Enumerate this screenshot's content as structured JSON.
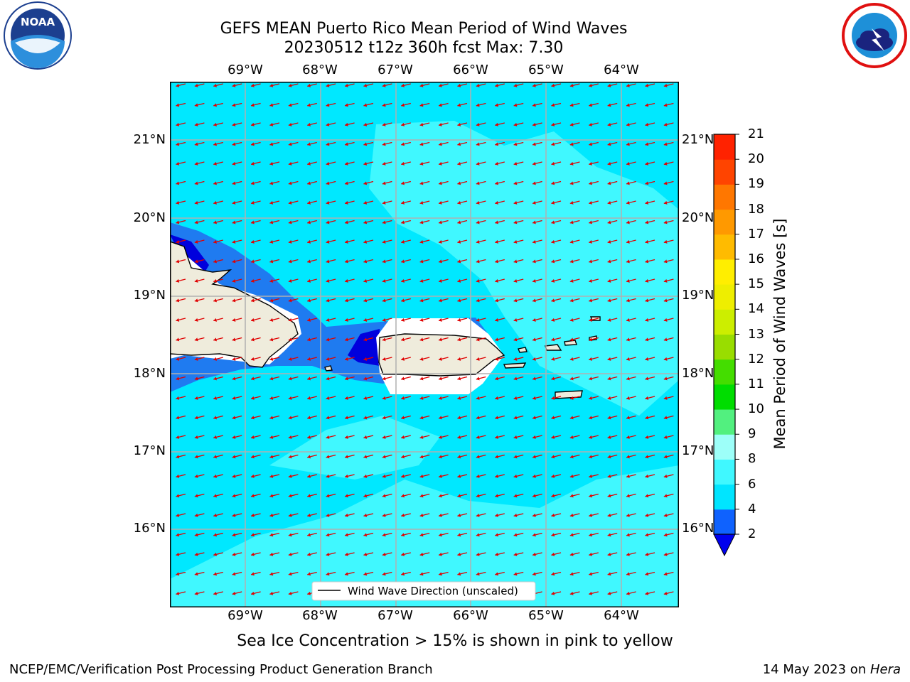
{
  "title_line1": "GEFS MEAN Puerto Rico Mean Period of Wind Waves",
  "title_line2": "20230512 t12z 360h fcst   Max: 7.30",
  "lon_labels": [
    "69°W",
    "68°W",
    "67°W",
    "66°W",
    "65°W",
    "64°W"
  ],
  "lat_labels": [
    "21°N",
    "20°N",
    "19°N",
    "18°N",
    "17°N",
    "16°N"
  ],
  "colorbar": {
    "label": "Mean Period of Wind Waves [s]",
    "ticks": [
      "2",
      "4",
      "6",
      "8",
      "9",
      "10",
      "11",
      "12",
      "13",
      "14",
      "15",
      "16",
      "17",
      "18",
      "19",
      "20",
      "21"
    ],
    "colors": [
      "#0f62fe",
      "#00e5ff",
      "#40f8ff",
      "#9dfff9",
      "#52f07f",
      "#00dd00",
      "#44dd00",
      "#99dd00",
      "#ccee00",
      "#eeee00",
      "#ffee00",
      "#ffbb00",
      "#ff9900",
      "#ff7700",
      "#ff4400",
      "#ff2200",
      "#ff0000"
    ],
    "extend_color": "#0000ee"
  },
  "legend_label": "Wind Wave Direction (unscaled)",
  "caption": "Sea Ice Concentration > 15% is shown in pink to yellow",
  "footer_left": "NCEP/EMC/Verification Post Processing Product Generation Branch",
  "footer_right_prefix": "14 May 2023 on ",
  "footer_right_host": "Hera",
  "logos": {
    "left": "noaa-logo",
    "right": "nws-logo",
    "noaa_text": "NOAA",
    "nws_text": "NATIONAL WEATHER SERVICE"
  }
}
